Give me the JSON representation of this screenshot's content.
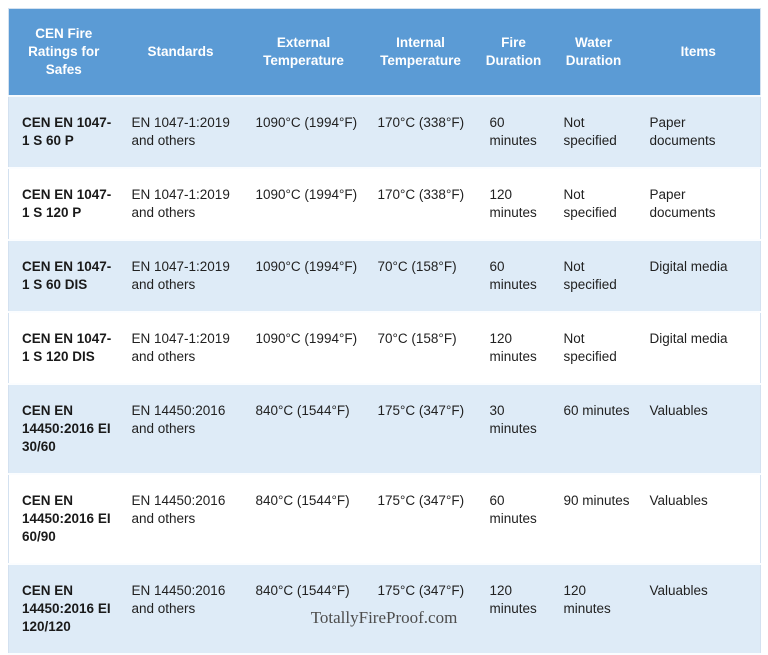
{
  "table": {
    "columns": [
      "CEN Fire Ratings for Safes",
      "Standards",
      "External Temperature",
      "Internal Temperature",
      "Fire Duration",
      "Water Duration",
      "Items"
    ],
    "rows": [
      [
        "CEN EN 1047-1 S 60 P",
        "EN 1047-1:2019 and others",
        "1090°C (1994°F)",
        "170°C (338°F)",
        "60 minutes",
        "Not specified",
        "Paper documents"
      ],
      [
        "CEN EN 1047-1 S 120 P",
        "EN 1047-1:2019 and others",
        "1090°C (1994°F)",
        "170°C (338°F)",
        "120 minutes",
        "Not specified",
        "Paper documents"
      ],
      [
        "CEN EN 1047-1 S 60 DIS",
        "EN 1047-1:2019 and others",
        "1090°C (1994°F)",
        "70°C (158°F)",
        "60 minutes",
        "Not specified",
        "Digital media"
      ],
      [
        "CEN EN 1047-1 S 120 DIS",
        "EN 1047-1:2019 and others",
        "1090°C (1994°F)",
        "70°C (158°F)",
        "120 minutes",
        "Not specified",
        "Digital media"
      ],
      [
        "CEN EN 14450:2016 EI 30/60",
        "EN 14450:2016 and others",
        "840°C (1544°F)",
        "175°C (347°F)",
        "30 minutes",
        "60 minutes",
        "Valuables"
      ],
      [
        "CEN EN 14450:2016 EI 60/90",
        "EN 14450:2016 and others",
        "840°C (1544°F)",
        "175°C (347°F)",
        "60 minutes",
        "90 minutes",
        "Valuables"
      ],
      [
        "CEN EN 14450:2016 EI 120/120",
        "EN 14450:2016 and others",
        "840°C (1544°F)",
        "175°C (347°F)",
        "120 minutes",
        "120 minutes",
        "Valuables"
      ]
    ]
  },
  "footer": {
    "text": "TotallyFireProof.com"
  },
  "colors": {
    "header_bg": "#5b9bd5",
    "header_text": "#ffffff",
    "row_alt_bg": "#deebf7",
    "row_bg": "#ffffff",
    "body_text": "#212121",
    "footer_text": "#4d4d4d"
  }
}
